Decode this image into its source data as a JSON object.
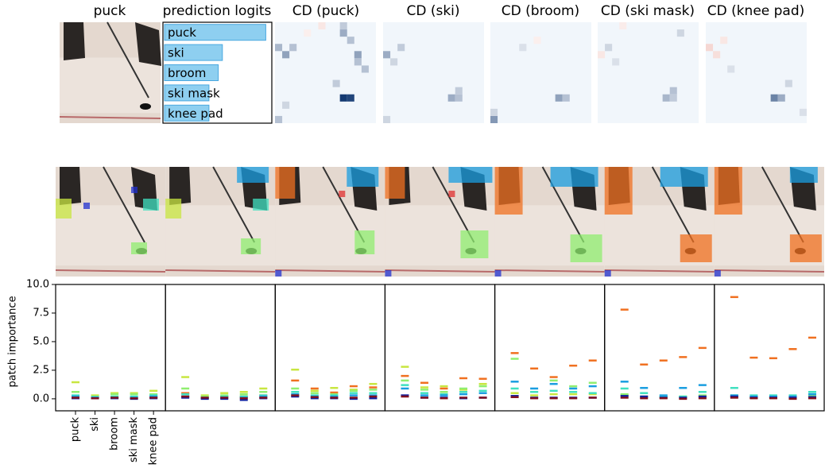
{
  "image_title": "puck",
  "chart_data": [
    {
      "type": "bar",
      "orientation": "horizontal",
      "title": "prediction logits",
      "categories": [
        "puck",
        "ski",
        "broom",
        "ski mask",
        "knee pad"
      ],
      "values": [
        9.8,
        5.6,
        5.2,
        4.3,
        4.3
      ],
      "xlim": [
        0,
        10
      ],
      "color": "#8ecff0"
    },
    {
      "type": "heatmap",
      "title": "CD (puck)",
      "grid_size": 14,
      "clim": [
        -1,
        1
      ],
      "cells": [
        [
          0,
          9,
          0.25
        ],
        [
          1,
          9,
          0.4
        ],
        [
          2,
          10,
          0.3
        ],
        [
          3,
          0,
          0.35
        ],
        [
          4,
          1,
          0.45
        ],
        [
          3,
          2,
          0.3
        ],
        [
          4,
          11,
          0.45
        ],
        [
          5,
          11,
          0.3
        ],
        [
          6,
          12,
          0.3
        ],
        [
          8,
          8,
          0.25
        ],
        [
          10,
          9,
          0.95
        ],
        [
          10,
          10,
          0.9
        ],
        [
          11,
          1,
          0.2
        ],
        [
          13,
          0,
          0.3
        ],
        [
          0,
          6,
          -0.15
        ],
        [
          1,
          4,
          -0.1
        ]
      ]
    },
    {
      "type": "heatmap",
      "title": "CD (ski)",
      "grid_size": 14,
      "clim": [
        -1,
        1
      ],
      "cells": [
        [
          3,
          2,
          0.25
        ],
        [
          4,
          0,
          0.4
        ],
        [
          5,
          1,
          0.2
        ],
        [
          10,
          9,
          0.4
        ],
        [
          10,
          10,
          0.3
        ],
        [
          9,
          10,
          0.25
        ],
        [
          13,
          0,
          0.2
        ]
      ]
    },
    {
      "type": "heatmap",
      "title": "CD (broom)",
      "grid_size": 14,
      "clim": [
        -1,
        1
      ],
      "cells": [
        [
          13,
          0,
          0.5
        ],
        [
          10,
          9,
          0.45
        ],
        [
          10,
          10,
          0.3
        ],
        [
          12,
          0,
          0.2
        ],
        [
          3,
          4,
          0.15
        ],
        [
          2,
          6,
          -0.1
        ]
      ]
    },
    {
      "type": "heatmap",
      "title": "CD (ski mask)",
      "grid_size": 14,
      "clim": [
        -1,
        1
      ],
      "cells": [
        [
          10,
          9,
          0.35
        ],
        [
          9,
          10,
          0.3
        ],
        [
          10,
          10,
          0.25
        ],
        [
          0,
          3,
          -0.12
        ],
        [
          4,
          0,
          -0.15
        ],
        [
          3,
          1,
          0.2
        ],
        [
          5,
          2,
          0.15
        ],
        [
          1,
          11,
          0.2
        ]
      ]
    },
    {
      "type": "heatmap",
      "title": "CD (knee pad)",
      "grid_size": 14,
      "clim": [
        -1,
        1
      ],
      "cells": [
        [
          10,
          9,
          0.6
        ],
        [
          10,
          10,
          0.4
        ],
        [
          3,
          0,
          -0.25
        ],
        [
          4,
          1,
          -0.2
        ],
        [
          2,
          2,
          -0.15
        ],
        [
          6,
          3,
          0.15
        ],
        [
          8,
          11,
          0.2
        ],
        [
          12,
          13,
          0.15
        ]
      ]
    },
    {
      "type": "dash",
      "ylabel": "patch importance",
      "categories": [
        "puck",
        "ski",
        "broom",
        "ski mask",
        "knee pad"
      ],
      "ylim": [
        -1.05,
        10
      ],
      "yticks": [
        {
          "value": 0,
          "label": "0.0"
        },
        {
          "value": 2.5,
          "label": "2.5"
        },
        {
          "value": 5,
          "label": "5.0"
        },
        {
          "value": 7.5,
          "label": "7.5"
        },
        {
          "value": 10,
          "label": "10.0"
        }
      ],
      "panels": [
        {
          "series": [
            {
              "color": "#f07020",
              "values": [
                0.15,
                0.1,
                0.1,
                0.1,
                0.15
              ]
            },
            {
              "color": "#c8e640",
              "values": [
                1.45,
                0.3,
                0.5,
                0.5,
                0.7
              ]
            },
            {
              "color": "#90ee70",
              "values": [
                0.6,
                0.2,
                0.4,
                0.4,
                0.4
              ]
            },
            {
              "color": "#40e0c0",
              "values": [
                0.3,
                0.15,
                0.2,
                0.2,
                0.3
              ]
            },
            {
              "color": "#1a9ee0",
              "values": [
                0.2,
                0.1,
                0.1,
                0.1,
                0.2
              ]
            },
            {
              "color": "#1020a0",
              "values": [
                0.05,
                0.05,
                0.05,
                0,
                0.05
              ]
            },
            {
              "color": "#801020",
              "values": [
                0.1,
                0.05,
                0.1,
                0.05,
                0.1
              ]
            }
          ]
        },
        {
          "series": [
            {
              "color": "#f07020",
              "values": [
                0.5,
                0.1,
                0.2,
                0.2,
                0.3
              ]
            },
            {
              "color": "#c8e640",
              "values": [
                1.9,
                0.3,
                0.5,
                0.6,
                0.9
              ]
            },
            {
              "color": "#90ee70",
              "values": [
                0.9,
                0.2,
                0.3,
                0.4,
                0.6
              ]
            },
            {
              "color": "#40e0c0",
              "values": [
                0.4,
                0.1,
                0.2,
                0.2,
                0.3
              ]
            },
            {
              "color": "#1a9ee0",
              "values": [
                0.2,
                0.05,
                0.1,
                0.1,
                0.2
              ]
            },
            {
              "color": "#1020a0",
              "values": [
                0.1,
                0,
                0,
                -0.1,
                0.05
              ]
            },
            {
              "color": "#801020",
              "values": [
                0.2,
                0.1,
                0.1,
                0.05,
                0.1
              ]
            }
          ]
        },
        {
          "series": [
            {
              "color": "#f07020",
              "values": [
                1.6,
                0.9,
                0.55,
                1.1,
                1.0
              ]
            },
            {
              "color": "#c8e640",
              "values": [
                2.55,
                0.7,
                0.95,
                0.8,
                1.3
              ]
            },
            {
              "color": "#90ee70",
              "values": [
                0.9,
                0.5,
                0.4,
                0.7,
                0.8
              ]
            },
            {
              "color": "#40e0c0",
              "values": [
                0.6,
                0.3,
                0.3,
                0.5,
                0.5
              ]
            },
            {
              "color": "#1a9ee0",
              "values": [
                0.4,
                0.2,
                0.2,
                0.3,
                0.3
              ]
            },
            {
              "color": "#1020a0",
              "values": [
                0.2,
                0.05,
                0.05,
                0,
                0.05
              ]
            },
            {
              "color": "#801020",
              "values": [
                0.3,
                0.15,
                0.1,
                0.1,
                0.2
              ]
            }
          ]
        },
        {
          "series": [
            {
              "color": "#f07020",
              "values": [
                2.0,
                1.4,
                0.9,
                1.8,
                1.75
              ]
            },
            {
              "color": "#c8e640",
              "values": [
                2.8,
                1.0,
                1.1,
                0.8,
                1.3
              ]
            },
            {
              "color": "#90ee70",
              "values": [
                1.6,
                0.8,
                0.6,
                0.9,
                1.1
              ]
            },
            {
              "color": "#40e0c0",
              "values": [
                1.2,
                0.5,
                0.4,
                0.6,
                0.7
              ]
            },
            {
              "color": "#1a9ee0",
              "values": [
                0.9,
                0.3,
                0.3,
                0.4,
                0.5
              ]
            },
            {
              "color": "#1020a0",
              "values": [
                0.3,
                0.1,
                0.1,
                0.05,
                0.1
              ]
            },
            {
              "color": "#801020",
              "values": [
                0.2,
                0.1,
                0.05,
                0.1,
                0.1
              ]
            }
          ]
        },
        {
          "series": [
            {
              "color": "#f07020",
              "values": [
                4.0,
                2.65,
                1.9,
                2.9,
                3.35
              ]
            },
            {
              "color": "#c8e640",
              "values": [
                0.5,
                0.3,
                0.4,
                0.4,
                0.4
              ]
            },
            {
              "color": "#90ee70",
              "values": [
                3.5,
                0.6,
                1.6,
                1.1,
                1.4
              ]
            },
            {
              "color": "#40e0c0",
              "values": [
                0.9,
                0.6,
                0.7,
                0.6,
                0.5
              ]
            },
            {
              "color": "#1a9ee0",
              "values": [
                1.5,
                0.9,
                1.3,
                0.9,
                1.1
              ]
            },
            {
              "color": "#1020a0",
              "values": [
                0.25,
                0.1,
                0.1,
                0.1,
                0.1
              ]
            },
            {
              "color": "#801020",
              "values": [
                0.15,
                0.05,
                0.05,
                0.05,
                0.1
              ]
            }
          ]
        },
        {
          "series": [
            {
              "color": "#f07020",
              "values": [
                7.8,
                3.0,
                3.35,
                3.65,
                4.45
              ]
            },
            {
              "color": "#c8e640",
              "values": [
                0.3,
                0.15,
                0.15,
                0.15,
                0.2
              ]
            },
            {
              "color": "#90ee70",
              "values": [
                0.4,
                0.2,
                0.2,
                0.2,
                0.3
              ]
            },
            {
              "color": "#40e0c0",
              "values": [
                0.9,
                0.5,
                0.2,
                0.2,
                0.6
              ]
            },
            {
              "color": "#1a9ee0",
              "values": [
                1.5,
                0.95,
                0.3,
                0.95,
                1.2
              ]
            },
            {
              "color": "#1020a0",
              "values": [
                0.25,
                0.2,
                0.1,
                0.1,
                0.2
              ]
            },
            {
              "color": "#801020",
              "values": [
                0.1,
                0.05,
                0.05,
                0,
                0.05
              ]
            }
          ]
        },
        {
          "series": [
            {
              "color": "#f07020",
              "values": [
                8.9,
                3.6,
                3.55,
                4.35,
                5.35
              ]
            },
            {
              "color": "#c8e640",
              "values": [
                0.2,
                0.1,
                0.1,
                0.1,
                0.15
              ]
            },
            {
              "color": "#90ee70",
              "values": [
                0.3,
                0.15,
                0.15,
                0.15,
                0.25
              ]
            },
            {
              "color": "#40e0c0",
              "values": [
                0.95,
                0.3,
                0.3,
                0.3,
                0.6
              ]
            },
            {
              "color": "#1a9ee0",
              "values": [
                0.3,
                0.2,
                0.2,
                0.2,
                0.4
              ]
            },
            {
              "color": "#1020a0",
              "values": [
                0.2,
                0.1,
                0.1,
                0.1,
                0.15
              ]
            },
            {
              "color": "#801020",
              "values": [
                0.1,
                0.05,
                0.05,
                0,
                0.05
              ]
            }
          ]
        }
      ]
    }
  ]
}
